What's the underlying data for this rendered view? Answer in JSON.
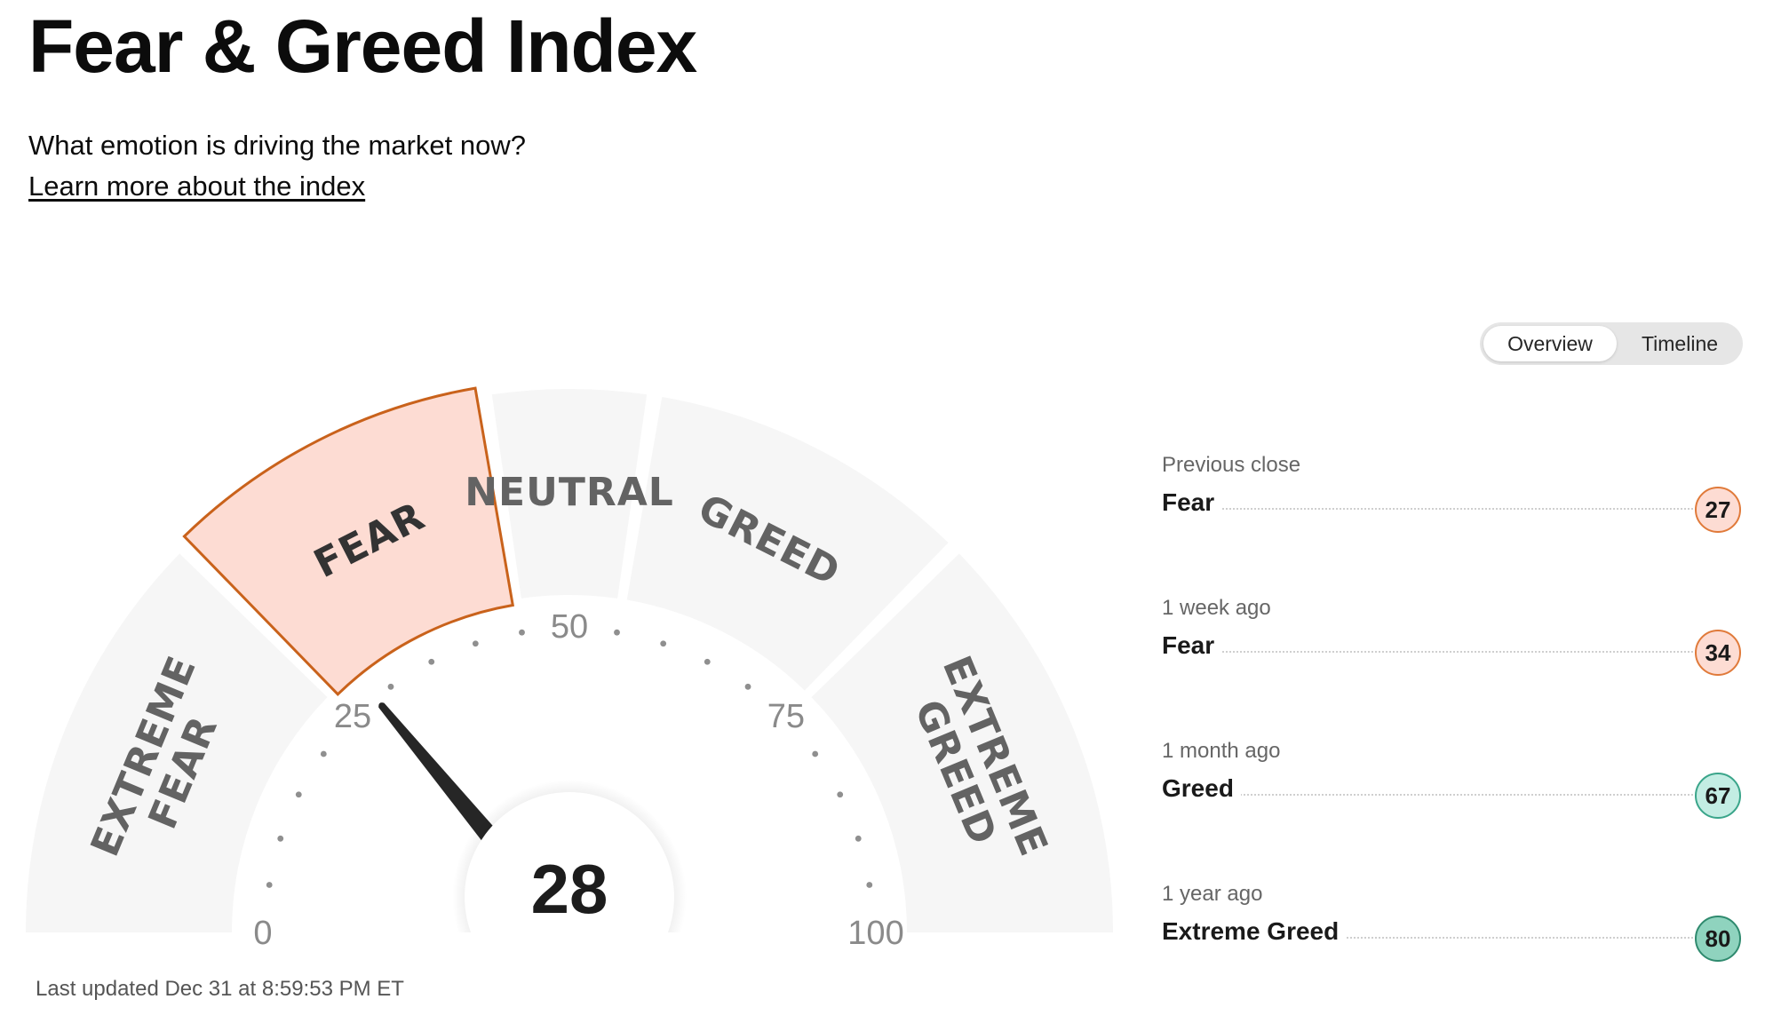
{
  "header": {
    "title": "Fear & Greed Index",
    "subtitle": "What emotion is driving the market now?",
    "learn_more": "Learn more about the index"
  },
  "gauge": {
    "score": 28,
    "score_label": "28",
    "active_band": 1,
    "bands": [
      {
        "label": "EXTREME FEAR",
        "lines": [
          "EXTREME",
          "FEAR"
        ],
        "from": 0,
        "to": 25
      },
      {
        "label": "FEAR",
        "lines": [
          "FEAR"
        ],
        "from": 25,
        "to": 45
      },
      {
        "label": "NEUTRAL",
        "lines": [
          "NEUTRAL"
        ],
        "from": 45,
        "to": 55
      },
      {
        "label": "GREED",
        "lines": [
          "GREED"
        ],
        "from": 55,
        "to": 75
      },
      {
        "label": "EXTREME GREED",
        "lines": [
          "EXTREME",
          "GREED"
        ],
        "from": 75,
        "to": 100
      }
    ],
    "ticks": [
      "0",
      "25",
      "50",
      "75",
      "100"
    ],
    "colors": {
      "band_fill": "#f6f6f6",
      "active_fill": "#fddcd3",
      "active_stroke": "#c9621b",
      "needle": "#262626"
    }
  },
  "last_updated": "Last updated Dec 31 at 8:59:53 PM ET",
  "toggle": {
    "options": [
      "Overview",
      "Timeline"
    ],
    "selected": "Overview"
  },
  "history": [
    {
      "label": "Previous close",
      "rating": "Fear",
      "value": "27",
      "bg": "#fddcd3",
      "border": "#e07a3a"
    },
    {
      "label": "1 week ago",
      "rating": "Fear",
      "value": "34",
      "bg": "#fddcd3",
      "border": "#e07a3a"
    },
    {
      "label": "1 month ago",
      "rating": "Greed",
      "value": "67",
      "bg": "#c3ede3",
      "border": "#3aa58a"
    },
    {
      "label": "1 year ago",
      "rating": "Extreme Greed",
      "value": "80",
      "bg": "#8fd3be",
      "border": "#2f8a6e"
    }
  ]
}
